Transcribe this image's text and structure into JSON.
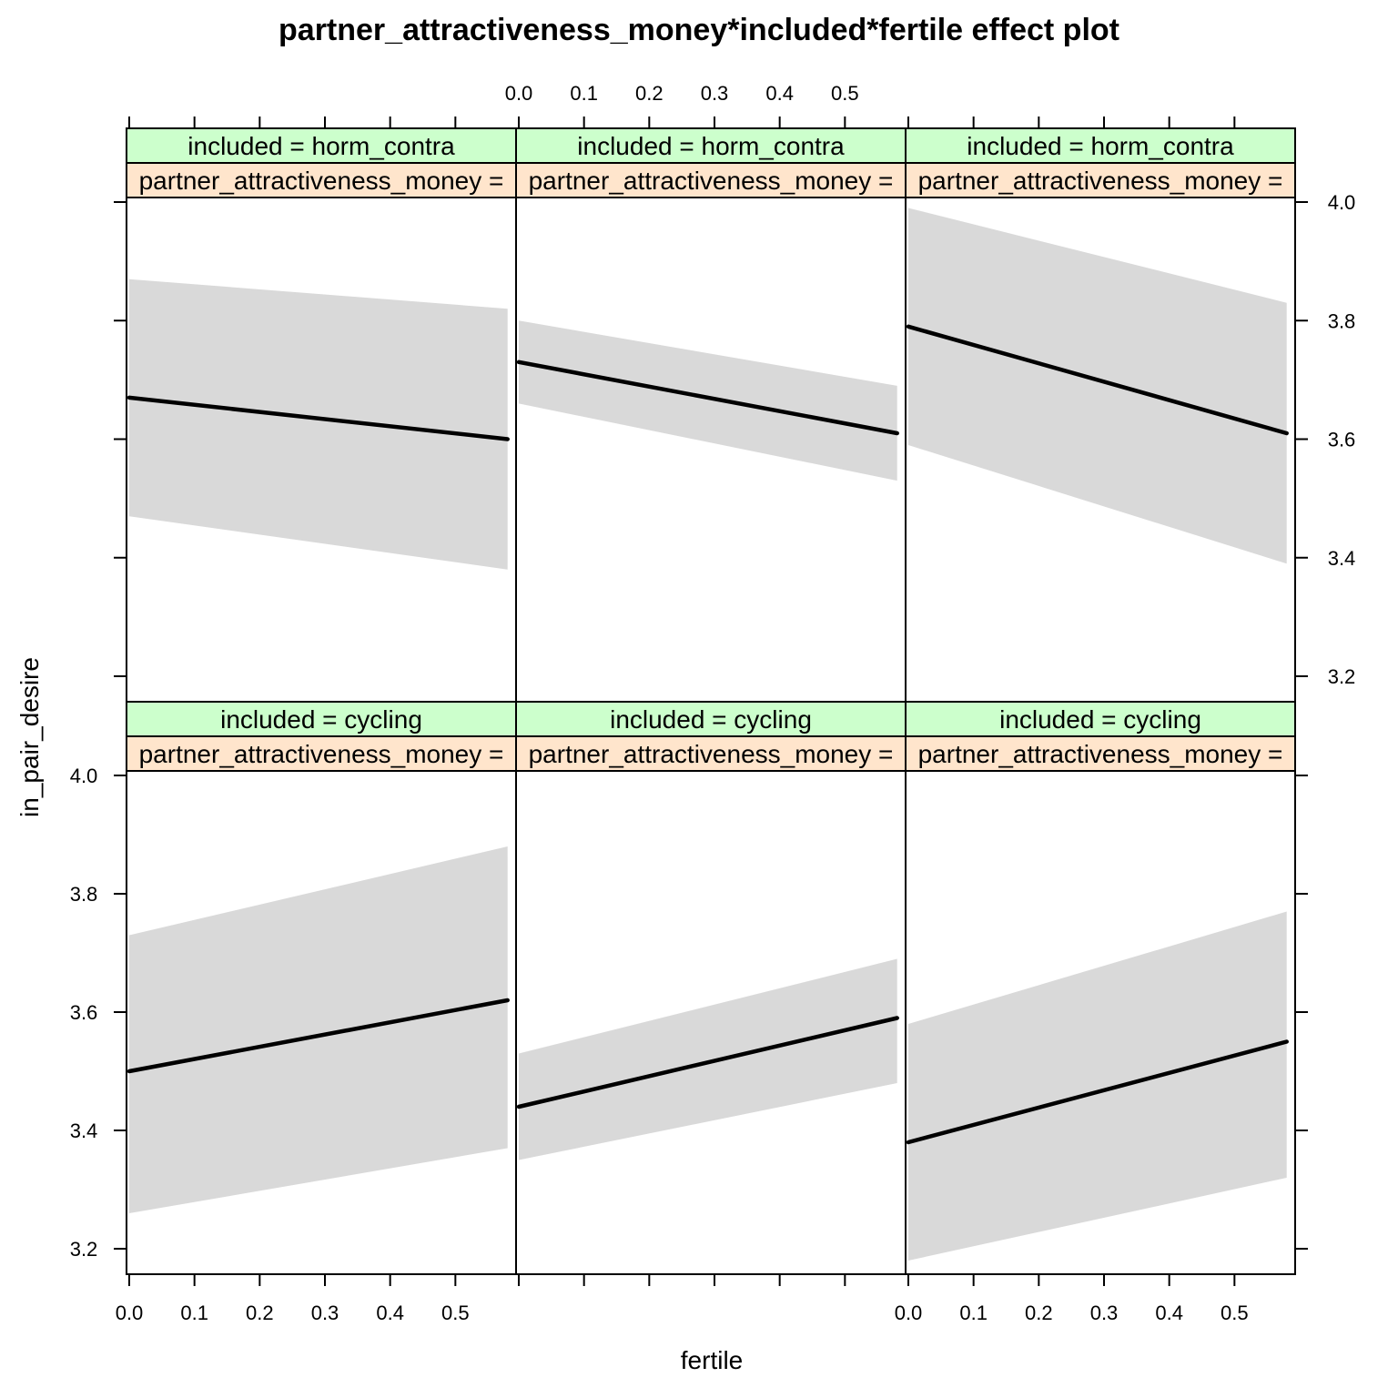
{
  "chart_data": {
    "type": "line",
    "title": "partner_attractiveness_money*included*fertile effect plot",
    "xlabel": "fertile",
    "ylabel": "in_pair_desire",
    "xlim": [
      0.0,
      0.6
    ],
    "ylim": [
      3.15,
      4.05
    ],
    "x_ticks": [
      0.0,
      0.1,
      0.2,
      0.3,
      0.4,
      0.5
    ],
    "x_tick_labels": [
      "0.0",
      "0.1",
      "0.2",
      "0.3",
      "0.4",
      "0.5"
    ],
    "y_ticks": [
      3.2,
      3.4,
      3.6,
      3.8,
      4.0
    ],
    "y_tick_labels": [
      "3.2",
      "3.4",
      "3.6",
      "3.8",
      "4.0"
    ],
    "colors": {
      "strip_included": "#ccffcc",
      "strip_partner": "#ffe5cc",
      "band": "#d9d9d9",
      "line": "#000000"
    },
    "panels": [
      {
        "row": 0,
        "col": 0,
        "strip_included": "included = horm_contra",
        "strip_partner": "partner_attractiveness_money =",
        "x": [
          0.0,
          0.58
        ],
        "fit": [
          3.67,
          3.6
        ],
        "lower": [
          3.47,
          3.38
        ],
        "upper": [
          3.87,
          3.82
        ]
      },
      {
        "row": 0,
        "col": 1,
        "strip_included": "included = horm_contra",
        "strip_partner": "partner_attractiveness_money =",
        "x": [
          0.0,
          0.58
        ],
        "fit": [
          3.73,
          3.61
        ],
        "lower": [
          3.66,
          3.53
        ],
        "upper": [
          3.8,
          3.69
        ]
      },
      {
        "row": 0,
        "col": 2,
        "strip_included": "included = horm_contra",
        "strip_partner": "partner_attractiveness_money =",
        "x": [
          0.0,
          0.58
        ],
        "fit": [
          3.79,
          3.61
        ],
        "lower": [
          3.59,
          3.39
        ],
        "upper": [
          3.99,
          3.83
        ]
      },
      {
        "row": 1,
        "col": 0,
        "strip_included": "included = cycling",
        "strip_partner": "partner_attractiveness_money =",
        "x": [
          0.0,
          0.58
        ],
        "fit": [
          3.5,
          3.62
        ],
        "lower": [
          3.26,
          3.37
        ],
        "upper": [
          3.73,
          3.88
        ]
      },
      {
        "row": 1,
        "col": 1,
        "strip_included": "included = cycling",
        "strip_partner": "partner_attractiveness_money =",
        "x": [
          0.0,
          0.58
        ],
        "fit": [
          3.44,
          3.59
        ],
        "lower": [
          3.35,
          3.48
        ],
        "upper": [
          3.53,
          3.69
        ]
      },
      {
        "row": 1,
        "col": 2,
        "strip_included": "included = cycling",
        "strip_partner": "partner_attractiveness_money =",
        "x": [
          0.0,
          0.58
        ],
        "fit": [
          3.38,
          3.55
        ],
        "lower": [
          3.18,
          3.32
        ],
        "upper": [
          3.58,
          3.77
        ]
      }
    ]
  }
}
